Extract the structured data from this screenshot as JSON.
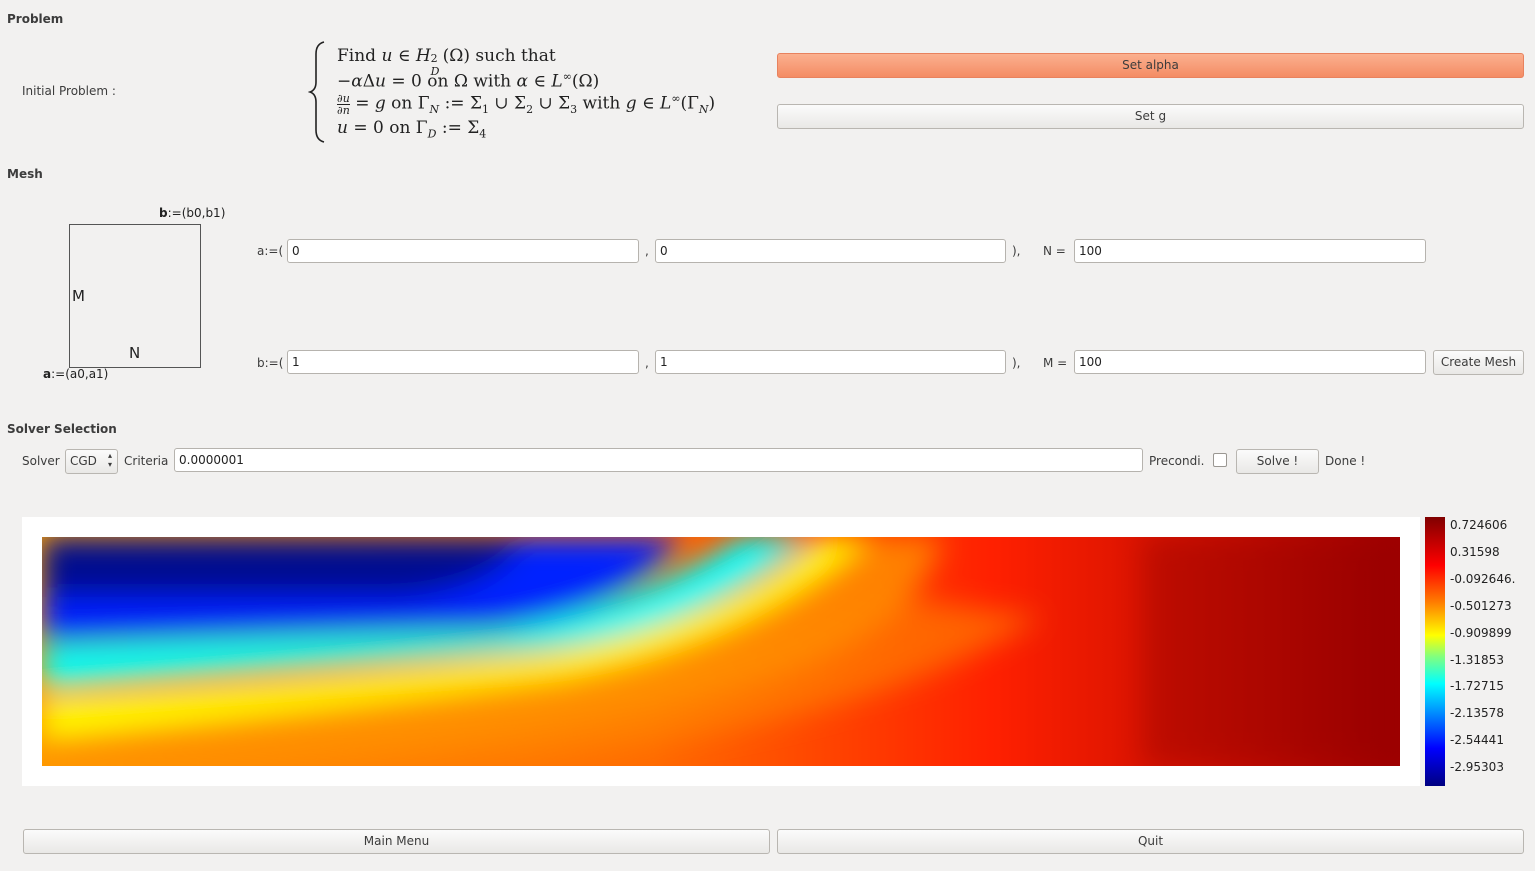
{
  "problem": {
    "section_title": "Problem",
    "initial_label": "Initial Problem :",
    "eq1": "Find u ∈ H²_D(Ω) such that",
    "eq2": "−αΔu = 0 on Ω with α ∈ L^∞(Ω)",
    "eq3": "∂u/∂n = g on Γ_N := Σ₁ ∪ Σ₂ ∪ Σ₃ with g ∈ L^∞(Γ_N)",
    "eq4": "u = 0 on Γ_D := Σ₄",
    "set_alpha_label": "Set alpha",
    "set_g_label": "Set g"
  },
  "mesh": {
    "section_title": "Mesh",
    "diagram": {
      "b_bold": "b",
      "b_rest": ":=(b0,b1)",
      "a_bold": "a",
      "a_rest": ":=(a0,a1)",
      "m_label": "M",
      "n_label": "N"
    },
    "a_prefix": "a:=(",
    "b_prefix": "b:=(",
    "comma": ",",
    "close": "),",
    "a0": "0",
    "a1": "0",
    "b0": "1",
    "b1": "1",
    "n_label": "N =",
    "m_label": "M =",
    "n_value": "100",
    "m_value": "100",
    "create_label": "Create Mesh"
  },
  "solver": {
    "section_title": "Solver Selection",
    "solver_label": "Solver",
    "solver_value": "CGD",
    "criteria_label": "Criteria",
    "criteria_value": "0.0000001",
    "precond_label": "Precondi.",
    "solve_label": "Solve !",
    "status": "Done !"
  },
  "plot": {
    "colorbar_ticks": [
      "0.724606",
      "0.31598",
      "-0.092646.",
      "-0.501273",
      "-0.909899",
      "-1.31853",
      "-1.72715",
      "-2.13578",
      "-2.54441",
      "-2.95303"
    ],
    "colormap": [
      "#800000",
      "#ff0000",
      "#ff8000",
      "#ffff00",
      "#80ff80",
      "#00ffff",
      "#0080ff",
      "#0000ff",
      "#000080"
    ]
  },
  "footer": {
    "main_menu_label": "Main Menu",
    "quit_label": "Quit"
  }
}
